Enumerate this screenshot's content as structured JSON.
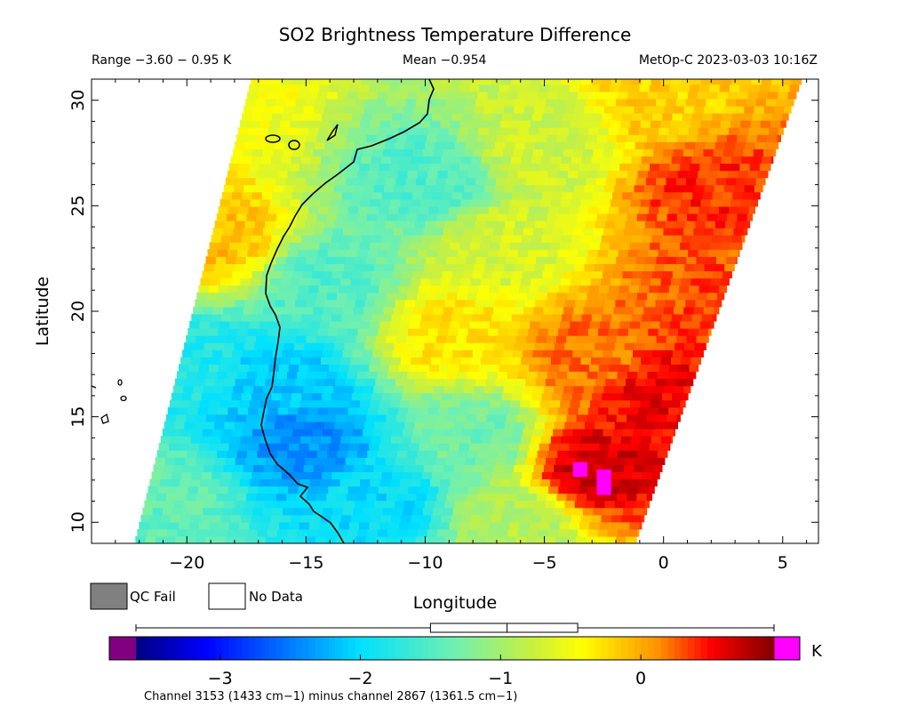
{
  "chart_data": {
    "type": "heatmap",
    "title": "SO2 Brightness Temperature Difference",
    "range_text": "Range −3.60 − 0.95 K",
    "mean_text": "Mean −0.954",
    "satellite_text": "MetOp-C 2023-03-03 10:16Z",
    "xlabel": "Longitude",
    "ylabel": "Latitude",
    "xlim": [
      -24,
      6.5
    ],
    "ylim": [
      9,
      31
    ],
    "x_ticks": [
      -20,
      -15,
      -10,
      -5,
      0,
      5
    ],
    "x_tick_labels": [
      "−20",
      "−15",
      "−10",
      "−5",
      "0",
      "5"
    ],
    "y_ticks": [
      10,
      15,
      20,
      25,
      30
    ],
    "y_tick_labels": [
      "10",
      "15",
      "20",
      "25",
      "30"
    ],
    "value_range": [
      -3.6,
      0.95
    ],
    "mean": -0.954,
    "units": "K",
    "colorbar": {
      "vmin": -3.6,
      "vmax": 0.95,
      "ticks": [
        -3,
        -2,
        -1,
        0
      ],
      "tick_labels": [
        "−3",
        "−2",
        "−1",
        "0"
      ],
      "unit_label": "K",
      "under_color": "#800080",
      "over_color": "#ff00ff",
      "box_whisker": {
        "min": -3.6,
        "q1": -1.5,
        "median": -0.954,
        "q3": -0.45,
        "max": 0.95
      }
    },
    "legend": {
      "qc_fail_label": "QC Fail",
      "no_data_label": "No Data",
      "qc_fail_color": "#808080"
    },
    "footnote": "Channel 3153 (1433 cm−1) minus channel 2867 (1361.5 cm−1)",
    "swath": {
      "bottom_left": [
        -22.2,
        9
      ],
      "bottom_right": [
        -1.2,
        9
      ],
      "top_left": [
        -17.3,
        31
      ],
      "top_right": [
        5.8,
        31
      ]
    },
    "field_anchors": [
      {
        "lon": -15,
        "lat": 14,
        "value": -2.4
      },
      {
        "lon": -16,
        "lat": 16.5,
        "value": -2.1
      },
      {
        "lon": -14,
        "lat": 21,
        "value": -1.5
      },
      {
        "lon": -10,
        "lat": 26,
        "value": -1.5
      },
      {
        "lon": -12,
        "lat": 11,
        "value": -2.0
      },
      {
        "lon": -8,
        "lat": 14,
        "value": -1.3
      },
      {
        "lon": -7,
        "lat": 23,
        "value": -0.7
      },
      {
        "lon": -5,
        "lat": 28,
        "value": -0.75
      },
      {
        "lon": -3,
        "lat": 18,
        "value": 0.2
      },
      {
        "lon": -3,
        "lat": 12.5,
        "value": 0.65
      },
      {
        "lon": 0,
        "lat": 16,
        "value": 0.55
      },
      {
        "lon": 2,
        "lat": 26,
        "value": 0.4
      },
      {
        "lon": 0,
        "lat": 30,
        "value": -0.2
      },
      {
        "lon": -18,
        "lat": 30,
        "value": -0.5
      },
      {
        "lon": -19,
        "lat": 23.5,
        "value": -0.1
      },
      {
        "lon": -20,
        "lat": 17.5,
        "value": -1.8
      },
      {
        "lon": -21,
        "lat": 11,
        "value": -1.4
      },
      {
        "lon": -6,
        "lat": 10,
        "value": -0.9
      },
      {
        "lon": 2,
        "lat": 21,
        "value": 0.3
      },
      {
        "lon": -9,
        "lat": 19,
        "value": -0.3
      }
    ],
    "hotspots": [
      {
        "lon": -3.5,
        "lat": 12.5,
        "w": 0.6,
        "h": 0.7
      },
      {
        "lon": -2.5,
        "lat": 11.9,
        "w": 0.6,
        "h": 1.2
      }
    ]
  }
}
